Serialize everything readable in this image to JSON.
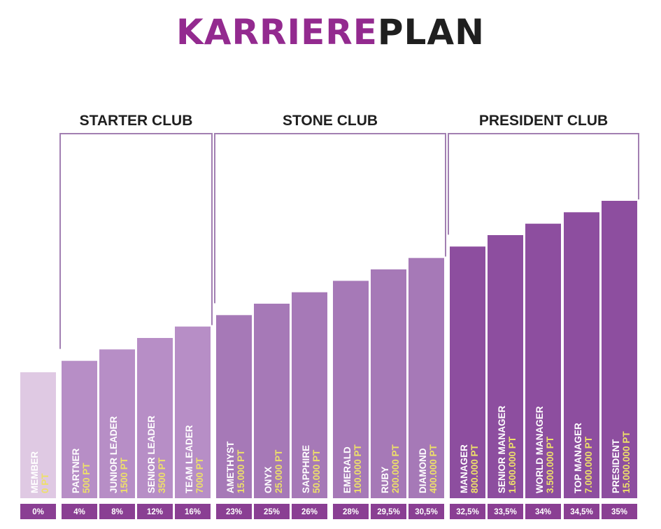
{
  "title": {
    "part1": "KARRIERE",
    "part2": "PLAN"
  },
  "colors": {
    "title_accent": "#932a8f",
    "title_dark": "#1f1f1f",
    "member": "#dfc9e3",
    "starter": "#b78ec6",
    "stone": "#a679b7",
    "president": "#8d4e9f",
    "bracket": "#a27fb2",
    "pct_strip": "#8a3f93",
    "points_text": "#ede06a"
  },
  "chart_data": {
    "type": "bar",
    "title": "KARRIEREPLAN",
    "xlabel": "",
    "ylabel": "",
    "clubs": [
      {
        "name": "STARTER CLUB",
        "from": 1,
        "to": 4
      },
      {
        "name": "STONE CLUB",
        "from": 5,
        "to": 10
      },
      {
        "name": "PRESIDENT CLUB",
        "from": 11,
        "to": 15
      }
    ],
    "categories": [
      "MEMBER",
      "PARTNER",
      "JUNIOR LEADER",
      "SENIOR LEADER",
      "TEAM LEADER",
      "AMETHYST",
      "ONYX",
      "SAPPHIRE",
      "EMERALD",
      "RUBY",
      "DIAMOND",
      "MANAGER",
      "SENIOR MANAGER",
      "WORLD MANAGER",
      "TOP MANAGER",
      "PRESIDENT"
    ],
    "points": [
      "0 PT",
      "500 PT",
      "1500 PT",
      "3500 PT",
      "7000 PT",
      "15.000 PT",
      "25.000 PT",
      "50.000 PT",
      "100.000 PT",
      "200.000 PT",
      "400.000 PT",
      "800.000 PT",
      "1.600.000 PT",
      "3.500.000 PT",
      "7.000.000 PT",
      "15.000.000 PT"
    ],
    "percentages": [
      "0%",
      "4%",
      "8%",
      "12%",
      "16%",
      "23%",
      "25%",
      "26%",
      "28%",
      "29,5%",
      "30,5%",
      "32,5%",
      "33,5%",
      "34%",
      "34,5%",
      "35%"
    ],
    "values": [
      0,
      1,
      2,
      3,
      4,
      5,
      6,
      7,
      8,
      9,
      10,
      11,
      12,
      13,
      14,
      15
    ],
    "ylim": [
      0,
      15
    ],
    "grid": false
  }
}
